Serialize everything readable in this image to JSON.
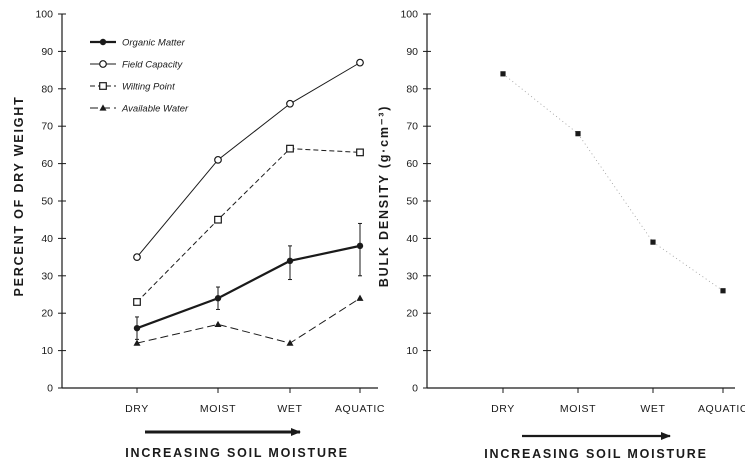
{
  "chart_data": [
    {
      "type": "line",
      "categories": [
        "DRY",
        "MOIST",
        "WET",
        "AQUATIC"
      ],
      "ylabel": "PERCENT OF DRY WEIGHT",
      "xlabel": "INCREASING SOIL MOISTURE",
      "ylim": [
        0,
        100
      ],
      "yticks": [
        "0",
        "10",
        "20",
        "30",
        "40",
        "50",
        "60",
        "70",
        "80",
        "90",
        "100"
      ],
      "legend_position": "top-left",
      "series": [
        {
          "name": "Organic Matter",
          "values": [
            16,
            24,
            34,
            38
          ],
          "error": [
            [
              13,
              19
            ],
            [
              21,
              27
            ],
            [
              29,
              38
            ],
            [
              30,
              44
            ]
          ],
          "marker": "filled-circle",
          "dash": "solid",
          "weight": "heavy"
        },
        {
          "name": "Field Capacity",
          "values": [
            35,
            61,
            76,
            87
          ],
          "marker": "open-circle",
          "dash": "solid",
          "weight": "light"
        },
        {
          "name": "Wilting Point",
          "values": [
            23,
            45,
            64,
            63
          ],
          "marker": "open-square",
          "dash": "dashed",
          "weight": "light"
        },
        {
          "name": "Available Water",
          "values": [
            12,
            17,
            12,
            24
          ],
          "marker": "triangle",
          "dash": "long-dashed",
          "weight": "light"
        }
      ]
    },
    {
      "type": "scatter",
      "categories": [
        "DRY",
        "MOIST",
        "WET",
        "AQUATIC"
      ],
      "values": [
        84,
        68,
        39,
        26
      ],
      "ylabel": "BULK DENSITY (g·cm⁻³)",
      "xlabel": "INCREASING SOIL MOISTURE",
      "ylim": [
        0,
        100
      ],
      "yticks": [
        "0",
        "10",
        "20",
        "30",
        "40",
        "50",
        "60",
        "70",
        "80",
        "90",
        "100"
      ],
      "trend": "faint dotted"
    }
  ]
}
